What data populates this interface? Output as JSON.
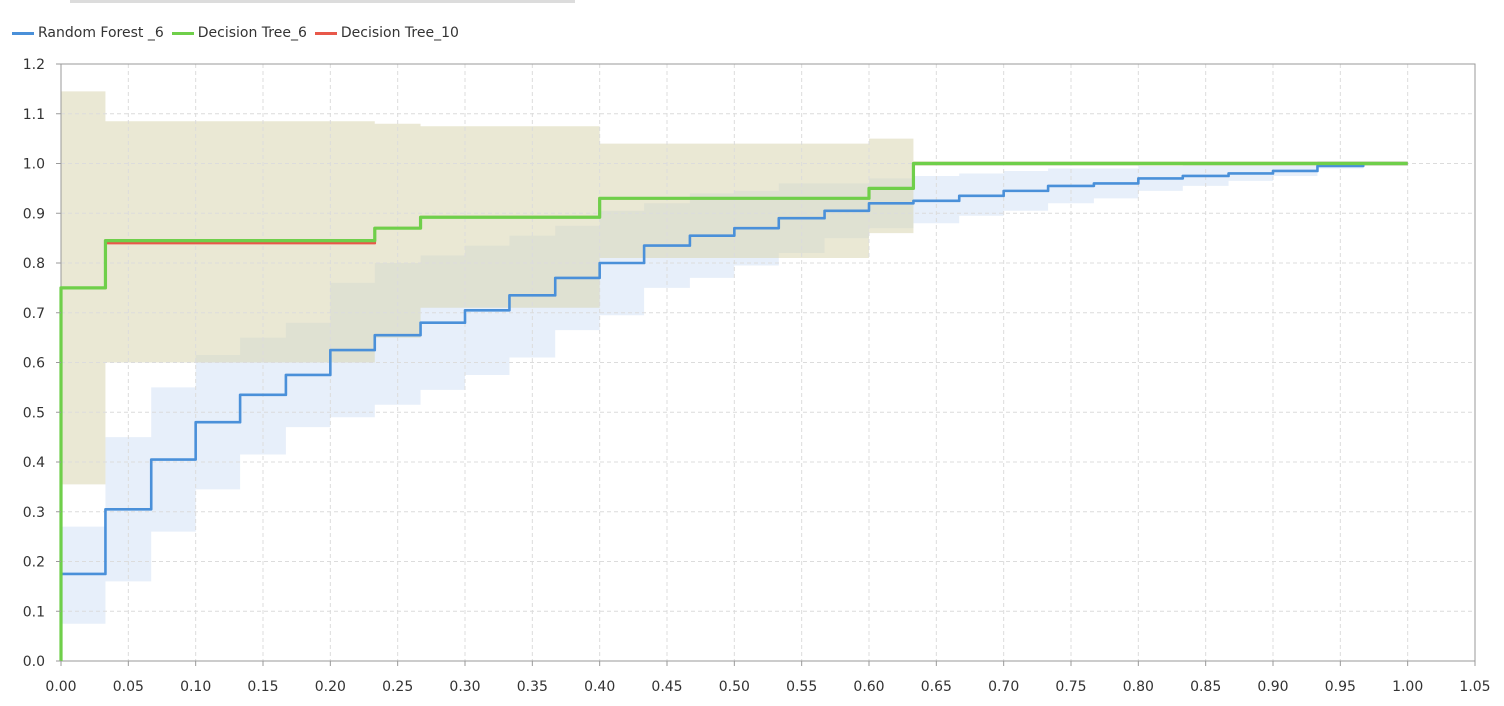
{
  "chart_data": {
    "type": "line",
    "title": "",
    "xlabel": "",
    "ylabel": "",
    "xlim": [
      0.0,
      1.05
    ],
    "ylim": [
      0.0,
      1.2
    ],
    "x_ticks": [
      "0.00",
      "0.05",
      "0.10",
      "0.15",
      "0.20",
      "0.25",
      "0.30",
      "0.35",
      "0.40",
      "0.45",
      "0.50",
      "0.55",
      "0.60",
      "0.65",
      "0.70",
      "0.75",
      "0.80",
      "0.85",
      "0.90",
      "0.95",
      "1.00",
      "1.05"
    ],
    "y_ticks": [
      "0.0",
      "0.1",
      "0.2",
      "0.3",
      "0.4",
      "0.5",
      "0.6",
      "0.7",
      "0.8",
      "0.9",
      "1.0",
      "1.1",
      "1.2"
    ],
    "grid": true,
    "legend_position": "top-left",
    "series": [
      {
        "name": "Random Forest _6",
        "color": "#4a90d9",
        "band_color": "#cfe0f6",
        "steps": [
          [
            0.0,
            0.175
          ],
          [
            0.033,
            0.305
          ],
          [
            0.067,
            0.405
          ],
          [
            0.1,
            0.48
          ],
          [
            0.133,
            0.535
          ],
          [
            0.167,
            0.575
          ],
          [
            0.2,
            0.625
          ],
          [
            0.233,
            0.655
          ],
          [
            0.267,
            0.68
          ],
          [
            0.3,
            0.705
          ],
          [
            0.333,
            0.735
          ],
          [
            0.367,
            0.77
          ],
          [
            0.4,
            0.8
          ],
          [
            0.433,
            0.835
          ],
          [
            0.467,
            0.855
          ],
          [
            0.5,
            0.87
          ],
          [
            0.533,
            0.89
          ],
          [
            0.567,
            0.905
          ],
          [
            0.6,
            0.92
          ],
          [
            0.633,
            0.925
          ],
          [
            0.667,
            0.935
          ],
          [
            0.7,
            0.945
          ],
          [
            0.733,
            0.955
          ],
          [
            0.767,
            0.96
          ],
          [
            0.8,
            0.97
          ],
          [
            0.833,
            0.975
          ],
          [
            0.867,
            0.98
          ],
          [
            0.9,
            0.985
          ],
          [
            0.933,
            0.995
          ],
          [
            0.967,
            1.0
          ],
          [
            1.0,
            1.0
          ]
        ],
        "band": [
          [
            0.0,
            0.075,
            0.27
          ],
          [
            0.033,
            0.16,
            0.45
          ],
          [
            0.067,
            0.26,
            0.55
          ],
          [
            0.1,
            0.345,
            0.615
          ],
          [
            0.133,
            0.415,
            0.65
          ],
          [
            0.167,
            0.47,
            0.68
          ],
          [
            0.2,
            0.49,
            0.76
          ],
          [
            0.233,
            0.515,
            0.8
          ],
          [
            0.267,
            0.545,
            0.815
          ],
          [
            0.3,
            0.575,
            0.835
          ],
          [
            0.333,
            0.61,
            0.855
          ],
          [
            0.367,
            0.665,
            0.875
          ],
          [
            0.4,
            0.695,
            0.905
          ],
          [
            0.433,
            0.75,
            0.92
          ],
          [
            0.467,
            0.77,
            0.94
          ],
          [
            0.5,
            0.795,
            0.945
          ],
          [
            0.533,
            0.82,
            0.96
          ],
          [
            0.567,
            0.85,
            0.96
          ],
          [
            0.6,
            0.87,
            0.97
          ],
          [
            0.633,
            0.88,
            0.975
          ],
          [
            0.667,
            0.895,
            0.98
          ],
          [
            0.7,
            0.905,
            0.985
          ],
          [
            0.733,
            0.92,
            0.99
          ],
          [
            0.767,
            0.93,
            0.99
          ],
          [
            0.8,
            0.945,
            0.995
          ],
          [
            0.833,
            0.955,
            1.0
          ],
          [
            0.867,
            0.965,
            1.0
          ],
          [
            0.9,
            0.975,
            1.0
          ],
          [
            0.933,
            0.99,
            1.005
          ],
          [
            0.967,
            0.995,
            1.005
          ],
          [
            1.0,
            0.995,
            1.005
          ]
        ]
      },
      {
        "name": "Decision Tree_6",
        "color": "#6fcf4a",
        "band_color": "#d8d6b0",
        "steps": [
          [
            0.0,
            0.75
          ],
          [
            0.033,
            0.845
          ],
          [
            0.233,
            0.87
          ],
          [
            0.267,
            0.892
          ],
          [
            0.4,
            0.93
          ],
          [
            0.6,
            0.95
          ],
          [
            0.633,
            1.0
          ],
          [
            1.0,
            1.0
          ]
        ],
        "band": [
          [
            0.0,
            0.355,
            1.145
          ],
          [
            0.033,
            0.6,
            1.085
          ],
          [
            0.233,
            0.65,
            1.08
          ],
          [
            0.267,
            0.71,
            1.075
          ],
          [
            0.4,
            0.81,
            1.04
          ],
          [
            0.6,
            0.86,
            1.05
          ],
          [
            0.633,
            0.995,
            1.005
          ],
          [
            1.0,
            0.995,
            1.005
          ]
        ]
      },
      {
        "name": "Decision Tree_10",
        "color": "#e8584a",
        "band_color": "#d8d6b0",
        "steps": [
          [
            0.0,
            0.75
          ],
          [
            0.033,
            0.84
          ],
          [
            0.233,
            0.87
          ],
          [
            0.267,
            0.892
          ],
          [
            0.4,
            0.93
          ],
          [
            0.6,
            0.95
          ],
          [
            0.633,
            1.0
          ],
          [
            1.0,
            1.0
          ]
        ],
        "band": []
      }
    ]
  }
}
